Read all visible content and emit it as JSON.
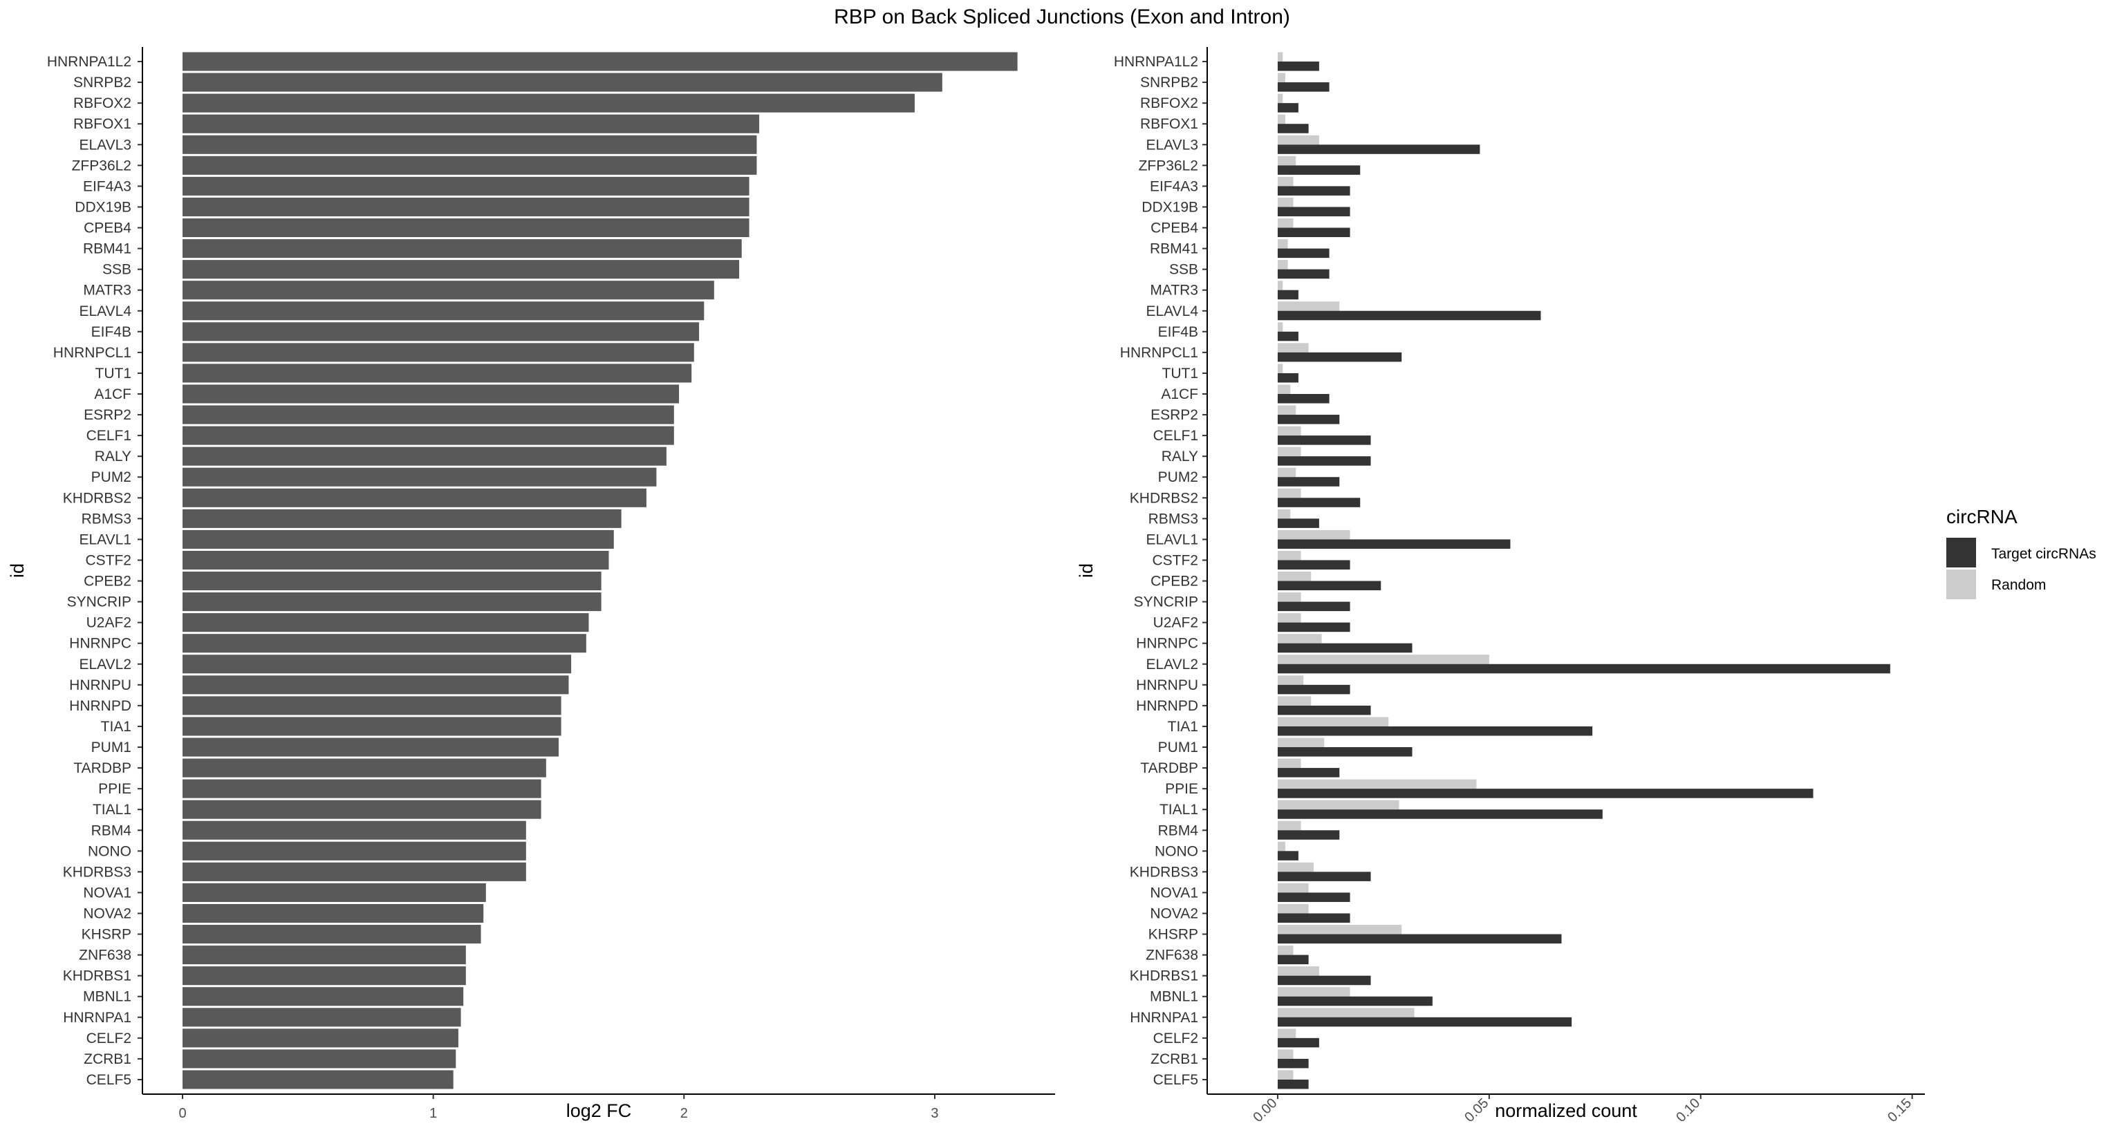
{
  "title": "RBP on Back Spliced Junctions (Exon and Intron)",
  "chart_data": [
    {
      "type": "bar",
      "orientation": "horizontal",
      "ylabel": "id",
      "xlabel": "log2 FC",
      "xlim": [
        -0.16,
        3.48
      ],
      "xticks": [
        0,
        1,
        2,
        3
      ],
      "xtick_labels": [
        "0",
        "1",
        "2",
        "3"
      ],
      "bar_color": "#595959",
      "categories": [
        "HNRNPA1L2",
        "SNRPB2",
        "RBFOX2",
        "RBFOX1",
        "ELAVL3",
        "ZFP36L2",
        "EIF4A3",
        "DDX19B",
        "CPEB4",
        "RBM41",
        "SSB",
        "MATR3",
        "ELAVL4",
        "EIF4B",
        "HNRNPCL1",
        "TUT1",
        "A1CF",
        "ESRP2",
        "CELF1",
        "RALY",
        "PUM2",
        "KHDRBS2",
        "RBMS3",
        "ELAVL1",
        "CSTF2",
        "CPEB2",
        "SYNCRIP",
        "U2AF2",
        "HNRNPC",
        "ELAVL2",
        "HNRNPU",
        "HNRNPD",
        "TIA1",
        "PUM1",
        "TARDBP",
        "PPIE",
        "TIAL1",
        "RBM4",
        "NONO",
        "KHDRBS3",
        "NOVA1",
        "NOVA2",
        "KHSRP",
        "ZNF638",
        "KHDRBS1",
        "MBNL1",
        "HNRNPA1",
        "CELF2",
        "ZCRB1",
        "CELF5"
      ],
      "values": [
        3.33,
        3.03,
        2.92,
        2.3,
        2.29,
        2.29,
        2.26,
        2.26,
        2.26,
        2.23,
        2.22,
        2.12,
        2.08,
        2.06,
        2.04,
        2.03,
        1.98,
        1.96,
        1.96,
        1.93,
        1.89,
        1.85,
        1.75,
        1.72,
        1.7,
        1.67,
        1.67,
        1.62,
        1.61,
        1.55,
        1.54,
        1.51,
        1.51,
        1.5,
        1.45,
        1.43,
        1.43,
        1.37,
        1.37,
        1.37,
        1.21,
        1.2,
        1.19,
        1.13,
        1.13,
        1.12,
        1.11,
        1.1,
        1.09,
        1.08
      ]
    },
    {
      "type": "bar",
      "orientation": "horizontal",
      "grouped": true,
      "ylabel": "id",
      "xlabel": "normalized count",
      "xlim": [
        -0.008,
        0.153
      ],
      "xticks": [
        0,
        0.05,
        0.1,
        0.15
      ],
      "xtick_labels": [
        "0.00",
        "0.05",
        "0.10",
        "0.15"
      ],
      "categories": [
        "HNRNPA1L2",
        "SNRPB2",
        "RBFOX2",
        "RBFOX1",
        "ELAVL3",
        "ZFP36L2",
        "EIF4A3",
        "DDX19B",
        "CPEB4",
        "RBM41",
        "SSB",
        "MATR3",
        "ELAVL4",
        "EIF4B",
        "HNRNPCL1",
        "TUT1",
        "A1CF",
        "ESRP2",
        "CELF1",
        "RALY",
        "PUM2",
        "KHDRBS2",
        "RBMS3",
        "ELAVL1",
        "CSTF2",
        "CPEB2",
        "SYNCRIP",
        "U2AF2",
        "HNRNPC",
        "ELAVL2",
        "HNRNPU",
        "HNRNPD",
        "TIA1",
        "PUM1",
        "TARDBP",
        "PPIE",
        "TIAL1",
        "RBM4",
        "NONO",
        "KHDRBS3",
        "NOVA1",
        "NOVA2",
        "KHSRP",
        "ZNF638",
        "KHDRBS1",
        "MBNL1",
        "HNRNPA1",
        "CELF2",
        "ZCRB1",
        "CELF5"
      ],
      "legend_title": "circRNA",
      "legend_position": "right",
      "series": [
        {
          "name": "Target circRNAs",
          "color": "#333333",
          "values": [
            0.0098,
            0.0122,
            0.0049,
            0.0073,
            0.0478,
            0.0195,
            0.0171,
            0.0171,
            0.0171,
            0.0122,
            0.0122,
            0.0049,
            0.0622,
            0.0049,
            0.0293,
            0.0049,
            0.0122,
            0.0146,
            0.022,
            0.022,
            0.0146,
            0.0195,
            0.0098,
            0.055,
            0.0171,
            0.0244,
            0.0171,
            0.0171,
            0.0318,
            0.1448,
            0.0171,
            0.022,
            0.0744,
            0.0318,
            0.0146,
            0.1266,
            0.0768,
            0.0146,
            0.0049,
            0.022,
            0.0171,
            0.0171,
            0.0671,
            0.0073,
            0.022,
            0.0366,
            0.0695,
            0.0098,
            0.0073,
            0.0073
          ]
        },
        {
          "name": "Random",
          "color": "#cccccc",
          "values": [
            0.0012,
            0.0018,
            0.0012,
            0.0018,
            0.0098,
            0.0043,
            0.0037,
            0.0037,
            0.0037,
            0.0024,
            0.0024,
            0.0012,
            0.0146,
            0.0012,
            0.0073,
            0.0012,
            0.003,
            0.0043,
            0.0055,
            0.0055,
            0.0043,
            0.0055,
            0.003,
            0.0171,
            0.0055,
            0.0079,
            0.0055,
            0.0055,
            0.0104,
            0.05,
            0.0061,
            0.0079,
            0.0262,
            0.011,
            0.0055,
            0.047,
            0.0287,
            0.0055,
            0.0018,
            0.0085,
            0.0073,
            0.0073,
            0.0293,
            0.0037,
            0.0098,
            0.0171,
            0.0323,
            0.0043,
            0.0037,
            0.0037
          ]
        }
      ]
    }
  ]
}
